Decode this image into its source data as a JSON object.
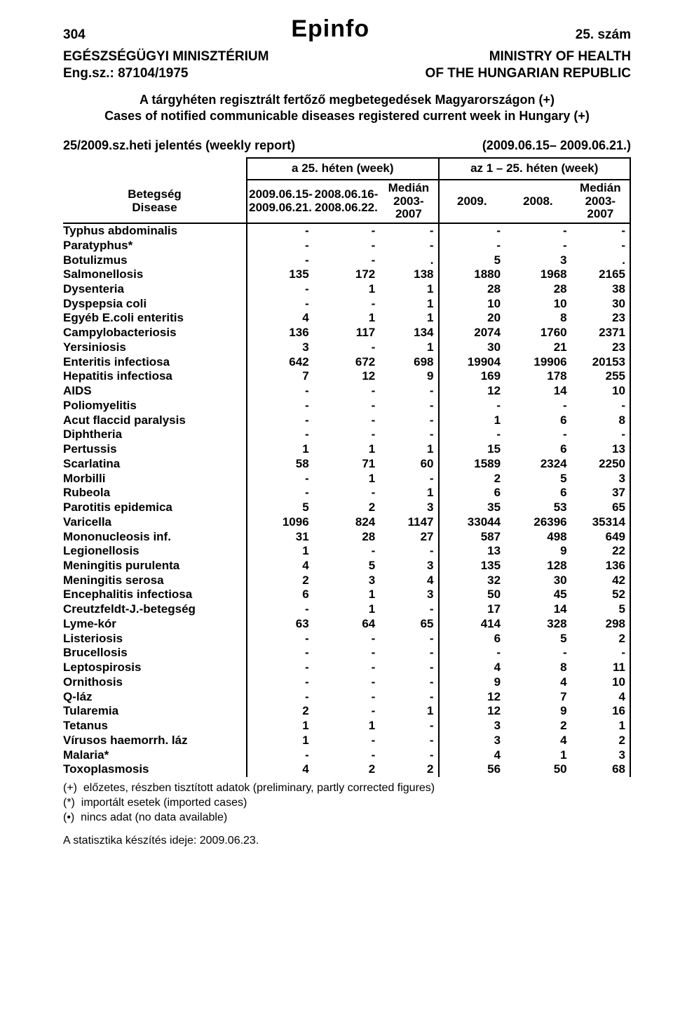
{
  "header": {
    "page_number": "304",
    "brand": "Epinfo",
    "issue": "25. szám",
    "org_left_1": "EGÉSZSÉGÜGYI MINISZTÉRIUM",
    "org_left_2": "Eng.sz.: 87104/1975",
    "org_right_1": "MINISTRY OF HEALTH",
    "org_right_2": "OF THE HUNGARIAN REPUBLIC",
    "intro_line_1": "A tárgyhéten regisztrált fertőző megbetegedések Magyarországon (+)",
    "intro_line_2": "Cases of notified communicable diseases registered current week in Hungary (+)",
    "report_left": "25/2009.sz.heti jelentés (weekly report)",
    "report_right": "(2009.06.15– 2009.06.21.)"
  },
  "table": {
    "group_a_label": "a 25. héten (week)",
    "group_b_label": "az 1 – 25. héten (week)",
    "disease_header_1": "Betegség",
    "disease_header_2": "Disease",
    "col_a1_l1": "2009.06.15-",
    "col_a1_l2": "2009.06.21.",
    "col_a2_l1": "2008.06.16-",
    "col_a2_l2": "2008.06.22.",
    "col_a3_l1": "Medián",
    "col_a3_l2": "2003-",
    "col_a3_l3": "2007",
    "col_b1": "2009.",
    "col_b2": "2008.",
    "col_b3_l1": "Medián",
    "col_b3_l2": "2003-",
    "col_b3_l3": "2007",
    "rows": [
      {
        "d": "Typhus abdominalis",
        "v": [
          "-",
          "-",
          "-",
          "-",
          "-",
          "-"
        ]
      },
      {
        "d": "Paratyphus*",
        "v": [
          "-",
          "-",
          "-",
          "-",
          "-",
          "-"
        ]
      },
      {
        "d": "Botulizmus",
        "v": [
          "-",
          "-",
          ".",
          "5",
          "3",
          "."
        ]
      },
      {
        "d": "Salmonellosis",
        "v": [
          "135",
          "172",
          "138",
          "1880",
          "1968",
          "2165"
        ]
      },
      {
        "d": "Dysenteria",
        "v": [
          "-",
          "1",
          "1",
          "28",
          "28",
          "38"
        ]
      },
      {
        "d": "Dyspepsia coli",
        "v": [
          "-",
          "-",
          "1",
          "10",
          "10",
          "30"
        ]
      },
      {
        "d": "Egyéb E.coli enteritis",
        "v": [
          "4",
          "1",
          "1",
          "20",
          "8",
          "23"
        ]
      },
      {
        "d": "Campylobacteriosis",
        "v": [
          "136",
          "117",
          "134",
          "2074",
          "1760",
          "2371"
        ]
      },
      {
        "d": "Yersiniosis",
        "v": [
          "3",
          "-",
          "1",
          "30",
          "21",
          "23"
        ]
      },
      {
        "d": "Enteritis infectiosa",
        "v": [
          "642",
          "672",
          "698",
          "19904",
          "19906",
          "20153"
        ]
      },
      {
        "d": "Hepatitis infectiosa",
        "v": [
          "7",
          "12",
          "9",
          "169",
          "178",
          "255"
        ]
      },
      {
        "d": "AIDS",
        "v": [
          "-",
          "-",
          "-",
          "12",
          "14",
          "10"
        ]
      },
      {
        "d": "Poliomyelitis",
        "v": [
          "-",
          "-",
          "-",
          "-",
          "-",
          "-"
        ]
      },
      {
        "d": "Acut flaccid paralysis",
        "v": [
          "-",
          "-",
          "-",
          "1",
          "6",
          "8"
        ]
      },
      {
        "d": "Diphtheria",
        "v": [
          "-",
          "-",
          "-",
          "-",
          "-",
          "-"
        ]
      },
      {
        "d": "Pertussis",
        "v": [
          "1",
          "1",
          "1",
          "15",
          "6",
          "13"
        ]
      },
      {
        "d": "Scarlatina",
        "v": [
          "58",
          "71",
          "60",
          "1589",
          "2324",
          "2250"
        ]
      },
      {
        "d": "Morbilli",
        "v": [
          "-",
          "1",
          "-",
          "2",
          "5",
          "3"
        ]
      },
      {
        "d": "Rubeola",
        "v": [
          "-",
          "-",
          "1",
          "6",
          "6",
          "37"
        ]
      },
      {
        "d": "Parotitis epidemica",
        "v": [
          "5",
          "2",
          "3",
          "35",
          "53",
          "65"
        ]
      },
      {
        "d": "Varicella",
        "v": [
          "1096",
          "824",
          "1147",
          "33044",
          "26396",
          "35314"
        ]
      },
      {
        "d": "Mononucleosis inf.",
        "v": [
          "31",
          "28",
          "27",
          "587",
          "498",
          "649"
        ]
      },
      {
        "d": "Legionellosis",
        "v": [
          "1",
          "-",
          "-",
          "13",
          "9",
          "22"
        ]
      },
      {
        "d": "Meningitis purulenta",
        "v": [
          "4",
          "5",
          "3",
          "135",
          "128",
          "136"
        ]
      },
      {
        "d": "Meningitis serosa",
        "v": [
          "2",
          "3",
          "4",
          "32",
          "30",
          "42"
        ]
      },
      {
        "d": "Encephalitis infectiosa",
        "v": [
          "6",
          "1",
          "3",
          "50",
          "45",
          "52"
        ]
      },
      {
        "d": "Creutzfeldt-J.-betegség",
        "v": [
          "-",
          "1",
          "-",
          "17",
          "14",
          "5"
        ]
      },
      {
        "d": "Lyme-kór",
        "v": [
          "63",
          "64",
          "65",
          "414",
          "328",
          "298"
        ]
      },
      {
        "d": "Listeriosis",
        "v": [
          "-",
          "-",
          "-",
          "6",
          "5",
          "2"
        ]
      },
      {
        "d": "Brucellosis",
        "v": [
          "-",
          "-",
          "-",
          "-",
          "-",
          "-"
        ]
      },
      {
        "d": "Leptospirosis",
        "v": [
          "-",
          "-",
          "-",
          "4",
          "8",
          "11"
        ]
      },
      {
        "d": "Ornithosis",
        "v": [
          "-",
          "-",
          "-",
          "9",
          "4",
          "10"
        ]
      },
      {
        "d": "Q-láz",
        "v": [
          "-",
          "-",
          "-",
          "12",
          "7",
          "4"
        ]
      },
      {
        "d": "Tularemia",
        "v": [
          "2",
          "-",
          "1",
          "12",
          "9",
          "16"
        ]
      },
      {
        "d": "Tetanus",
        "v": [
          "1",
          "1",
          "-",
          "3",
          "2",
          "1"
        ]
      },
      {
        "d": "Vírusos haemorrh. láz",
        "v": [
          "1",
          "-",
          "-",
          "3",
          "4",
          "2"
        ]
      },
      {
        "d": "Malaria*",
        "v": [
          "-",
          "-",
          "-",
          "4",
          "1",
          "3"
        ]
      },
      {
        "d": "Toxoplasmosis",
        "v": [
          "4",
          "2",
          "2",
          "56",
          "50",
          "68"
        ]
      }
    ]
  },
  "footnotes": {
    "f1": "(+)  előzetes, részben tisztított adatok (preliminary, partly corrected figures)",
    "f2": "(*)  importált esetek (imported cases)",
    "f3": "(•)  nincs adat (no data available)",
    "stat_date": "A statisztika készítés ideje: 2009.06.23."
  }
}
